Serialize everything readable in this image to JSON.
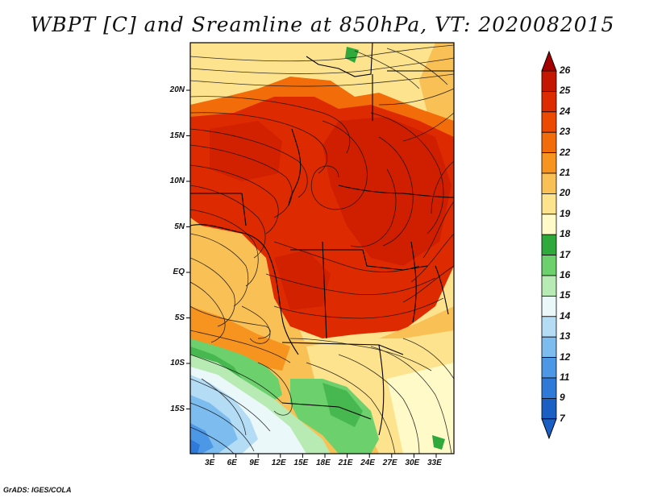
{
  "title": "WBPT [C] and Sreamline at 850hPa, VT: 2020082015",
  "credit": "GrADS: IGES/COLA",
  "map": {
    "lon_range": [
      0,
      35
    ],
    "lat_range": [
      -20,
      24
    ],
    "lat_ticks": [
      {
        "value": 20,
        "label": "20N"
      },
      {
        "value": 15,
        "label": "15N"
      },
      {
        "value": 10,
        "label": "10N"
      },
      {
        "value": 5,
        "label": "5N"
      },
      {
        "value": 0,
        "label": "EQ"
      },
      {
        "value": -5,
        "label": "5S"
      },
      {
        "value": -10,
        "label": "10S"
      },
      {
        "value": -15,
        "label": "15S"
      }
    ],
    "lon_ticks": [
      {
        "value": 3,
        "label": "3E"
      },
      {
        "value": 6,
        "label": "6E"
      },
      {
        "value": 9,
        "label": "9E"
      },
      {
        "value": 12,
        "label": "12E"
      },
      {
        "value": 15,
        "label": "15E"
      },
      {
        "value": 18,
        "label": "18E"
      },
      {
        "value": 21,
        "label": "21E"
      },
      {
        "value": 24,
        "label": "24E"
      },
      {
        "value": 27,
        "label": "27E"
      },
      {
        "value": 30,
        "label": "30E"
      },
      {
        "value": 33,
        "label": "33E"
      }
    ]
  },
  "colorbar": {
    "levels": [
      {
        "label": "26",
        "color": "#a50000"
      },
      {
        "label": "25",
        "color": "#c41600"
      },
      {
        "label": "24",
        "color": "#de2a00"
      },
      {
        "label": "23",
        "color": "#ec4a00"
      },
      {
        "label": "22",
        "color": "#f26c0a"
      },
      {
        "label": "21",
        "color": "#f79420"
      },
      {
        "label": "20",
        "color": "#f9c055"
      },
      {
        "label": "19",
        "color": "#fde38e"
      },
      {
        "label": "18",
        "color": "#fffac8"
      },
      {
        "label": "17",
        "color": "#2fa83c"
      },
      {
        "label": "16",
        "color": "#6cd06c"
      },
      {
        "label": "15",
        "color": "#b8eab4"
      },
      {
        "label": "14",
        "color": "#eaf8fa"
      },
      {
        "label": "13",
        "color": "#b4dcf5"
      },
      {
        "label": "12",
        "color": "#7cbcef"
      },
      {
        "label": "11",
        "color": "#4d98e6"
      },
      {
        "label": "9",
        "color": "#2f7ad9"
      },
      {
        "label": "7",
        "color": "#1a5fc4"
      }
    ],
    "over_color": "#a50000",
    "under_color": "#1a5fc4"
  }
}
